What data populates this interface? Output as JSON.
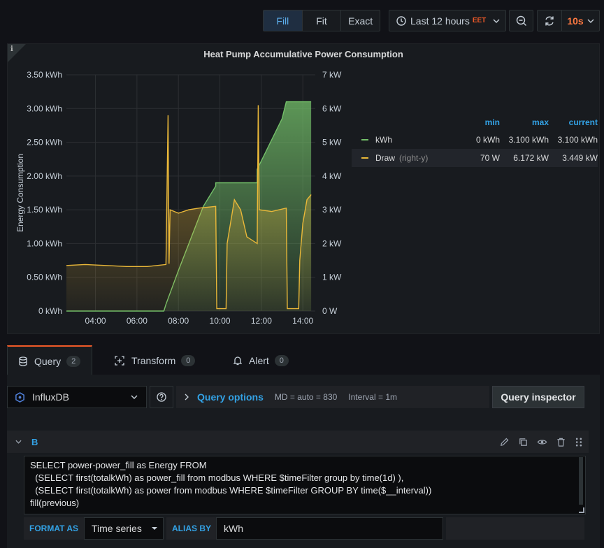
{
  "toolbar": {
    "scale_modes": [
      "Fill",
      "Fit",
      "Exact"
    ],
    "active_mode": "Fill",
    "time_range": "Last 12 hours",
    "timezone": "EET",
    "refresh_interval": "10s"
  },
  "panel": {
    "title": "Heat Pump Accumulative Power Consumption",
    "info_glyph": "i"
  },
  "chart_data": {
    "type": "area",
    "x_ticks": [
      "04:00",
      "06:00",
      "08:00",
      "10:00",
      "12:00",
      "14:00"
    ],
    "ylabel": "Energy Consumption",
    "y_left_ticks": [
      "0 kWh",
      "0.50 kWh",
      "1.00 kWh",
      "1.50 kWh",
      "2.00 kWh",
      "2.50 kWh",
      "3.00 kWh",
      "3.50 kWh"
    ],
    "y_left_range": [
      0,
      3.5
    ],
    "y_right_ticks": [
      "0 W",
      "1 kW",
      "2 kW",
      "3 kW",
      "4 kW",
      "5 kW",
      "6 kW",
      "7 kW"
    ],
    "y_right_range": [
      0,
      7
    ],
    "x_range": [
      2.6,
      14.6
    ],
    "series": [
      {
        "name": "kWh",
        "axis": "left",
        "color": "#73bf69",
        "points": [
          [
            2.6,
            0
          ],
          [
            7.3,
            0
          ],
          [
            7.4,
            0.1
          ],
          [
            8.0,
            0.6
          ],
          [
            9.2,
            1.55
          ],
          [
            9.8,
            1.85
          ],
          [
            9.8,
            1.9
          ],
          [
            11.8,
            1.9
          ],
          [
            11.8,
            2.1
          ],
          [
            13.0,
            2.85
          ],
          [
            13.2,
            3.1
          ],
          [
            14.4,
            3.1
          ]
        ]
      },
      {
        "name": "Draw",
        "axis": "right",
        "color": "#eab839",
        "points": [
          [
            2.6,
            1.35
          ],
          [
            3.5,
            1.38
          ],
          [
            4.5,
            1.35
          ],
          [
            5.5,
            1.32
          ],
          [
            6.5,
            1.32
          ],
          [
            7.4,
            1.38
          ],
          [
            7.5,
            5.8
          ],
          [
            7.55,
            1.4
          ],
          [
            7.6,
            3.0
          ],
          [
            8.0,
            2.9
          ],
          [
            8.5,
            3.0
          ],
          [
            9.0,
            3.05
          ],
          [
            9.8,
            3.1
          ],
          [
            9.85,
            0.07
          ],
          [
            10.3,
            0.07
          ],
          [
            10.35,
            2.0
          ],
          [
            10.7,
            3.3
          ],
          [
            11.0,
            3.0
          ],
          [
            11.3,
            2.2
          ],
          [
            11.8,
            2.0
          ],
          [
            11.85,
            6.1
          ],
          [
            11.9,
            3.0
          ],
          [
            12.5,
            2.95
          ],
          [
            13.2,
            3.05
          ],
          [
            13.25,
            0.07
          ],
          [
            13.8,
            0.07
          ],
          [
            13.85,
            1.5
          ],
          [
            14.0,
            2.6
          ],
          [
            14.2,
            3.3
          ],
          [
            14.4,
            3.45
          ]
        ]
      }
    ]
  },
  "legend": {
    "headers": [
      "min",
      "max",
      "current"
    ],
    "rows": [
      {
        "name": "kWh",
        "suffix": "",
        "color": "#73bf69",
        "min": "0 kWh",
        "max": "3.100 kWh",
        "current": "3.100 kWh"
      },
      {
        "name": "Draw",
        "suffix": "(right-y)",
        "color": "#eab839",
        "min": "70 W",
        "max": "6.172 kW",
        "current": "3.449 kW"
      }
    ]
  },
  "tabs": [
    {
      "label": "Query",
      "count": "2",
      "icon": "database-icon"
    },
    {
      "label": "Transform",
      "count": "0",
      "icon": "transform-icon"
    },
    {
      "label": "Alert",
      "count": "0",
      "icon": "bell-icon"
    }
  ],
  "query": {
    "datasource": "InfluxDB",
    "options_label": "Query options",
    "md_info": "MD = auto = 830",
    "interval_info": "Interval = 1m",
    "inspector_label": "Query inspector",
    "ref_id": "B",
    "sql": "SELECT power-power_fill as Energy FROM\n  (SELECT first(totalkWh) as power_fill from modbus WHERE $timeFilter group by time(1d) ),\n  (SELECT first(totalkWh) as power from modbus WHERE $timeFilter GROUP BY time($__interval))\nfill(previous)",
    "format_label": "FORMAT AS",
    "format_value": "Time series",
    "alias_label": "ALIAS BY",
    "alias_value": "kWh"
  }
}
